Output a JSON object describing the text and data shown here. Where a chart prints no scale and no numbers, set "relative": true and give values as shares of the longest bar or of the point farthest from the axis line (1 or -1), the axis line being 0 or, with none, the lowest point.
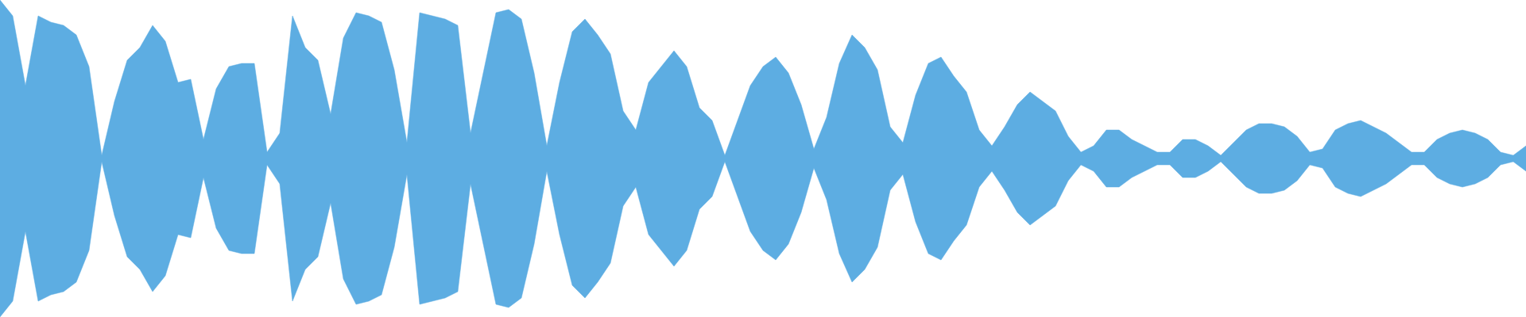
{
  "chart_data": {
    "type": "area",
    "relative": true,
    "categories": [
      null,
      null,
      null,
      null,
      null,
      null,
      null,
      null,
      null,
      null,
      null,
      null,
      null,
      null,
      null,
      null,
      null,
      null,
      null,
      null,
      null,
      null,
      null,
      null,
      null,
      null,
      null,
      null,
      null,
      null,
      null,
      null,
      null,
      null,
      null,
      null,
      null,
      null,
      null,
      null,
      null,
      null,
      null,
      null,
      null,
      null,
      null,
      null,
      null,
      null,
      null,
      null,
      null,
      null,
      null,
      null,
      null,
      null,
      null,
      null,
      null,
      null,
      null,
      null,
      null,
      null,
      null,
      null,
      null,
      null,
      null,
      null,
      null,
      null,
      null,
      null,
      null,
      null,
      null,
      null,
      null,
      null,
      null,
      null,
      null,
      null,
      null,
      null,
      null,
      null,
      null,
      null,
      null,
      null,
      null,
      null,
      null,
      null,
      null,
      null,
      null,
      null,
      null,
      null,
      null,
      null,
      null,
      null,
      null,
      null,
      null,
      null,
      null,
      null,
      null,
      null,
      null,
      null,
      null,
      null,
      null
    ],
    "series": [
      {
        "color": "#5dade2",
        "values": [
          1,
          0.95,
          0.73,
          0.95,
          0.93,
          0.92,
          0.89,
          0.79,
          0.51,
          0.68,
          0.81,
          0.85,
          0.92,
          0.87,
          0.74,
          0.75,
          0.56,
          0.72,
          0.79,
          0.8,
          0.8,
          0.52,
          0.58,
          0.95,
          0.85,
          0.81,
          0.64,
          0.88,
          0.96,
          0.95,
          0.93,
          0.78,
          0.55,
          0.96,
          0.95,
          0.94,
          0.92,
          0.58,
          0.77,
          0.96,
          0.97,
          0.94,
          0.77,
          0.54,
          0.74,
          0.9,
          0.94,
          0.89,
          0.83,
          0.65,
          0.59,
          0.74,
          0.79,
          0.84,
          0.79,
          0.66,
          0.62,
          0.51,
          0.62,
          0.73,
          0.79,
          0.82,
          0.77,
          0.67,
          0.53,
          0.63,
          0.8,
          0.89,
          0.85,
          0.78,
          0.6,
          0.55,
          0.7,
          0.8,
          0.82,
          0.76,
          0.71,
          0.59,
          0.54,
          0.6,
          0.67,
          0.71,
          0.68,
          0.65,
          0.57,
          0.52,
          0.54,
          0.59,
          0.59,
          0.56,
          0.54,
          0.52,
          0.52,
          0.56,
          0.56,
          0.54,
          0.51,
          0.55,
          0.59,
          0.61,
          0.61,
          0.6,
          0.57,
          0.52,
          0.53,
          0.59,
          0.61,
          0.62,
          0.6,
          0.58,
          0.55,
          0.52,
          0.52,
          0.56,
          0.58,
          0.59,
          0.58,
          0.56,
          0.52,
          0.51,
          0.54
        ]
      }
    ]
  }
}
